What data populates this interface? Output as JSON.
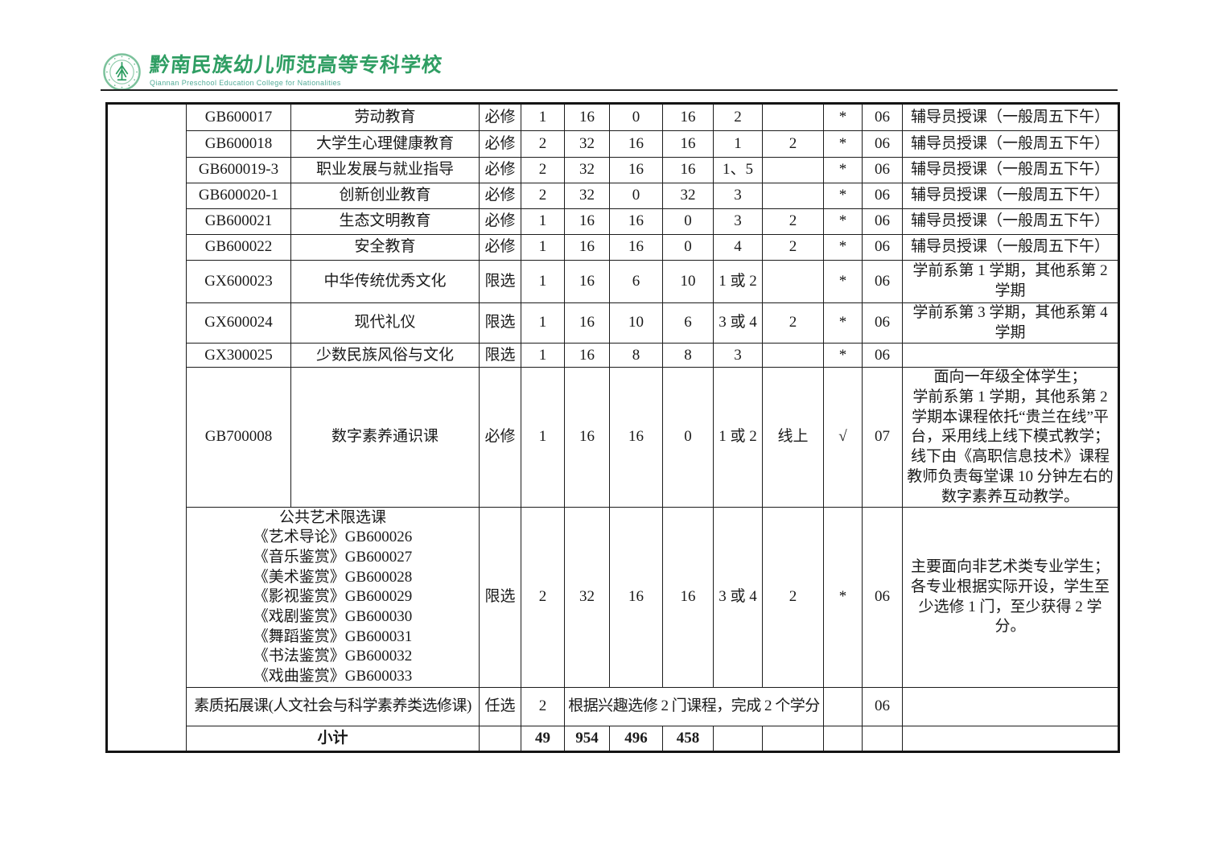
{
  "header": {
    "school_name_cn": "黔南民族幼儿师范高等专科学校",
    "school_name_en": "Qiannan Preschool Education College for Nationalities"
  },
  "colors": {
    "brand_green": "#2f9e63",
    "brand_teal": "#52ab97",
    "text": "#1a1a1a",
    "grid_line": "#1c1c1c"
  },
  "table": {
    "courses": [
      {
        "code": "GB600017",
        "name": "劳动教育",
        "type": "必修",
        "credits": "1",
        "total": "16",
        "theory": "0",
        "practice": "16",
        "semester": "2",
        "weekly": "",
        "assess": "*",
        "dept": "06",
        "remark": "辅导员授课（一般周五下午）"
      },
      {
        "code": "GB600018",
        "name": "大学生心理健康教育",
        "type": "必修",
        "credits": "2",
        "total": "32",
        "theory": "16",
        "practice": "16",
        "semester": "1",
        "weekly": "2",
        "assess": "*",
        "dept": "06",
        "remark": "辅导员授课（一般周五下午）"
      },
      {
        "code": "GB600019-3",
        "name": "职业发展与就业指导",
        "type": "必修",
        "credits": "2",
        "total": "32",
        "theory": "16",
        "practice": "16",
        "semester": "1、5",
        "weekly": "",
        "assess": "*",
        "dept": "06",
        "remark": "辅导员授课（一般周五下午）"
      },
      {
        "code": "GB600020-1",
        "name": "创新创业教育",
        "type": "必修",
        "credits": "2",
        "total": "32",
        "theory": "0",
        "practice": "32",
        "semester": "3",
        "weekly": "",
        "assess": "*",
        "dept": "06",
        "remark": "辅导员授课（一般周五下午）"
      },
      {
        "code": "GB600021",
        "name": "生态文明教育",
        "type": "必修",
        "credits": "1",
        "total": "16",
        "theory": "16",
        "practice": "0",
        "semester": "3",
        "weekly": "2",
        "assess": "*",
        "dept": "06",
        "remark": "辅导员授课（一般周五下午）"
      },
      {
        "code": "GB600022",
        "name": "安全教育",
        "type": "必修",
        "credits": "1",
        "total": "16",
        "theory": "16",
        "practice": "0",
        "semester": "4",
        "weekly": "2",
        "assess": "*",
        "dept": "06",
        "remark": "辅导员授课（一般周五下午）"
      },
      {
        "code": "GX600023",
        "name": "中华传统优秀文化",
        "type": "限选",
        "credits": "1",
        "total": "16",
        "theory": "6",
        "practice": "10",
        "semester": "1 或 2",
        "weekly": "",
        "assess": "*",
        "dept": "06",
        "remark": "学前系第 1 学期，其他系第 2 学期"
      },
      {
        "code": "GX600024",
        "name": "现代礼仪",
        "type": "限选",
        "credits": "1",
        "total": "16",
        "theory": "10",
        "practice": "6",
        "semester": "3 或 4",
        "weekly": "2",
        "assess": "*",
        "dept": "06",
        "remark": "学前系第 3 学期，其他系第 4 学期"
      },
      {
        "code": "GX300025",
        "name": "少数民族风俗与文化",
        "type": "限选",
        "credits": "1",
        "total": "16",
        "theory": "8",
        "practice": "8",
        "semester": "3",
        "weekly": "",
        "assess": "*",
        "dept": "06",
        "remark": ""
      },
      {
        "code": "GB700008",
        "name": "数字素养通识课",
        "type": "必修",
        "credits": "1",
        "total": "16",
        "theory": "16",
        "practice": "0",
        "semester": "1 或 2",
        "weekly": "线上",
        "assess": "√",
        "dept": "07",
        "remark": [
          "面向一年级全体学生；",
          "学前系第 1 学期，其他系第 2 学期本课程依托“贵兰在线”平台，采用线上线下模式教学；线下由《高职信息技术》课程教师负责每堂课 10 分钟左右的数字素养互动教学。"
        ]
      }
    ],
    "art_block": {
      "header": "公共艺术限选课",
      "courses": [
        "《艺术导论》GB600026",
        "《音乐鉴赏》GB600027",
        "《美术鉴赏》GB600028",
        "《影视鉴赏》GB600029",
        "《戏剧鉴赏》GB600030",
        "《舞蹈鉴赏》GB600031",
        "《书法鉴赏》GB600032",
        "《戏曲鉴赏》GB600033"
      ],
      "type": "限选",
      "credits": "2",
      "total": "32",
      "theory": "16",
      "practice": "16",
      "semester": "3 或 4",
      "weekly": "2",
      "assess": "*",
      "dept": "06",
      "remark": "主要面向非艺术类专业学生；各专业根据实际开设，学生至少选修 1 门，至少获得 2 学分。"
    },
    "quality_course": {
      "label": "素质拓展课(人文社会与科学素养类选修课)",
      "type": "任选",
      "credits": "2",
      "note": "根据兴趣选修 2 门课程，完成 2 个学分",
      "assess": "",
      "dept": "06",
      "remark": ""
    },
    "subtotal": {
      "label": "小计",
      "credits": "49",
      "total": "954",
      "theory": "496",
      "practice": "458"
    }
  }
}
